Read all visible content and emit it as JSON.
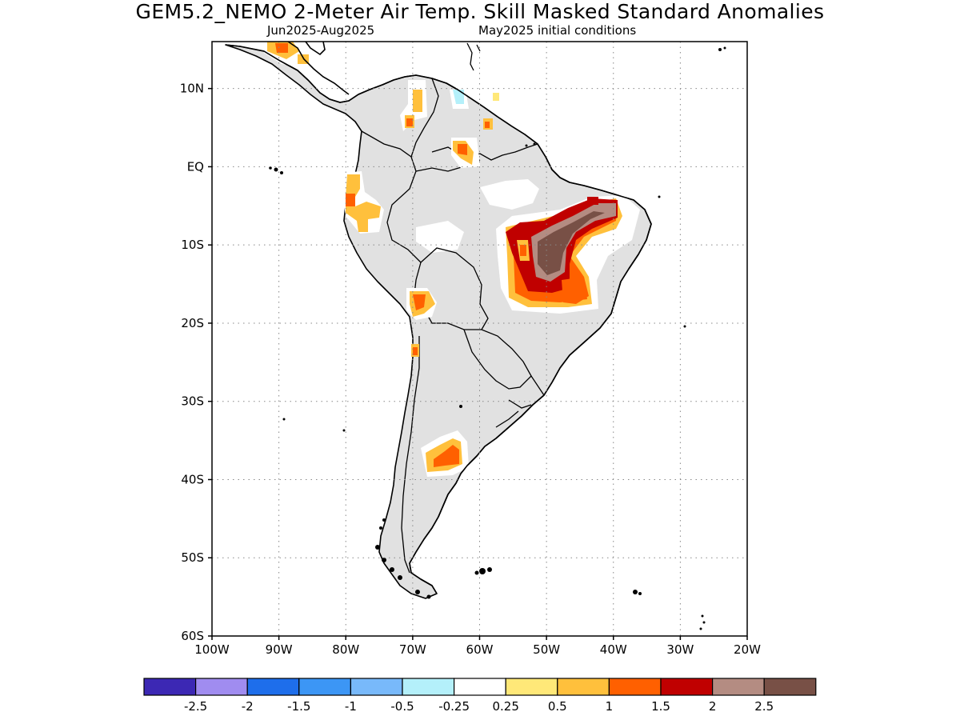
{
  "title": "GEM5.2_NEMO 2-Meter Air Temp. Skill Masked Standard Anomalies",
  "subtitle_period": "Jun2025-Aug2025",
  "subtitle_init": "May2025 initial conditions",
  "map": {
    "lon_range": [
      -100,
      -20
    ],
    "lat_range": [
      -60,
      16
    ],
    "lat_ticks": [
      {
        "lat": 10,
        "label": "10N"
      },
      {
        "lat": 0,
        "label": "EQ"
      },
      {
        "lat": -10,
        "label": "10S"
      },
      {
        "lat": -20,
        "label": "20S"
      },
      {
        "lat": -30,
        "label": "30S"
      },
      {
        "lat": -40,
        "label": "40S"
      },
      {
        "lat": -50,
        "label": "50S"
      },
      {
        "lat": -60,
        "label": "60S"
      }
    ],
    "lon_ticks": [
      {
        "lon": -100,
        "label": "100W"
      },
      {
        "lon": -90,
        "label": "90W"
      },
      {
        "lon": -80,
        "label": "80W"
      },
      {
        "lon": -70,
        "label": "70W"
      },
      {
        "lon": -60,
        "label": "60W"
      },
      {
        "lon": -50,
        "label": "50W"
      },
      {
        "lon": -40,
        "label": "40W"
      },
      {
        "lon": -30,
        "label": "30W"
      },
      {
        "lon": -20,
        "label": "20W"
      }
    ],
    "grid": "dotted",
    "masked_color": "#e1e1e1"
  },
  "colorbar": {
    "colors": [
      "#3c28b4",
      "#a08cf0",
      "#1e6eeb",
      "#3c96f5",
      "#78b9fa",
      "#b4f0fa",
      "#ffffff",
      "#ffe878",
      "#ffc03c",
      "#ff6000",
      "#c00000",
      "#b48c82",
      "#785046"
    ],
    "labels": [
      "-2.5",
      "-2",
      "-1.5",
      "-1",
      "-0.5",
      "-0.25",
      "0.25",
      "0.5",
      "1",
      "1.5",
      "2",
      "2.5"
    ]
  }
}
